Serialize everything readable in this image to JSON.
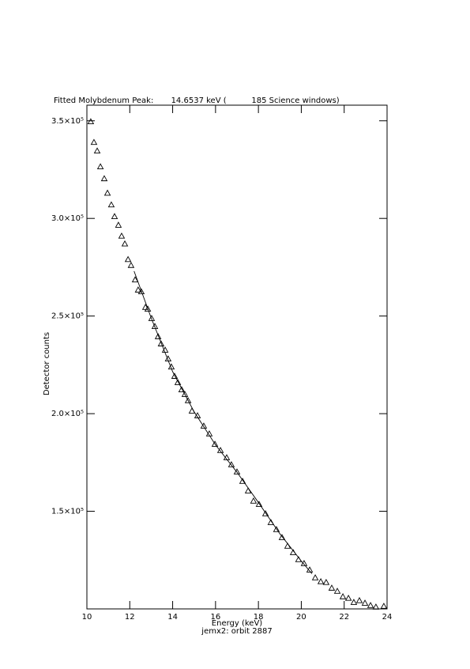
{
  "chart_data": {
    "type": "scatter",
    "title": "Fitted Molybdenum Peak:       14.6537 keV (          185 Science windows)",
    "xlabel": "Energy (keV)",
    "subtitle": "jemx2: orbit 2887",
    "ylabel": "Detector counts",
    "marker": "triangle",
    "color": "#000000",
    "x": [
      10.18,
      10.33,
      10.48,
      10.63,
      10.81,
      10.96,
      11.14,
      11.29,
      11.47,
      11.62,
      11.77,
      11.92,
      12.06,
      12.25,
      12.39,
      12.54,
      12.73,
      12.84,
      13.02,
      13.17,
      13.32,
      13.46,
      13.65,
      13.79,
      13.94,
      14.09,
      14.24,
      14.42,
      14.57,
      14.72,
      14.9,
      15.16,
      15.45,
      15.71,
      15.97,
      16.23,
      16.52,
      16.74,
      17.0,
      17.26,
      17.52,
      17.77,
      18.03,
      18.33,
      18.58,
      18.84,
      19.1,
      19.36,
      19.62,
      19.87,
      20.13,
      20.39,
      20.65,
      20.91,
      21.16,
      21.42,
      21.68,
      21.94,
      22.2,
      22.45,
      22.71,
      22.97,
      23.23,
      23.48,
      23.85
    ],
    "values": [
      349600,
      339000,
      334600,
      326500,
      320400,
      313000,
      307000,
      301000,
      296600,
      291000,
      287000,
      279000,
      276000,
      268600,
      263400,
      262500,
      254500,
      253600,
      248800,
      244700,
      239500,
      235800,
      232600,
      228100,
      224000,
      219200,
      216000,
      212300,
      209900,
      206700,
      201400,
      199000,
      193700,
      189700,
      184400,
      181200,
      177500,
      173900,
      170200,
      165400,
      160500,
      155300,
      153600,
      148800,
      144300,
      140700,
      136600,
      132200,
      128900,
      125300,
      123300,
      120000,
      116000,
      114000,
      113600,
      110700,
      109100,
      106300,
      105500,
      103400,
      104300,
      103000,
      101800,
      101000,
      101400
    ],
    "fit": {
      "x": [
        12.2,
        13,
        14,
        15,
        16,
        17,
        18,
        19,
        20,
        20.5
      ],
      "values": [
        273000,
        249000,
        221500,
        201000,
        184000,
        170000,
        154500,
        138500,
        124500,
        118000
      ]
    },
    "xlim": [
      10,
      24
    ],
    "xticks": [
      10,
      12,
      14,
      16,
      18,
      20,
      22,
      24
    ],
    "ylim": [
      100000,
      358000
    ],
    "yticks": [
      {
        "value": 150000,
        "label": "1.5×10⁵"
      },
      {
        "value": 200000,
        "label": "2.0×10⁵"
      },
      {
        "value": 250000,
        "label": "2.5×10⁵"
      },
      {
        "value": 300000,
        "label": "3.0×10⁵"
      },
      {
        "value": 350000,
        "label": "3.5×10⁵"
      }
    ]
  }
}
